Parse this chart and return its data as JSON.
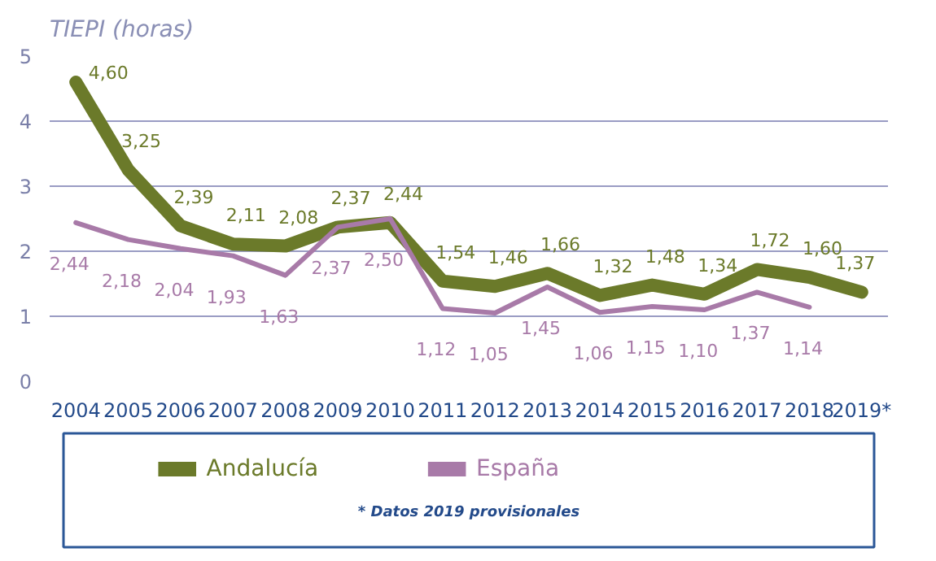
{
  "chart_data": {
    "type": "line",
    "ylabel": "TIEPI (horas)",
    "categories": [
      "2004",
      "2005",
      "2006",
      "2007",
      "2008",
      "2009",
      "2010",
      "2011",
      "2012",
      "2013",
      "2014",
      "2015",
      "2016",
      "2017",
      "2018",
      "2019*"
    ],
    "series": [
      {
        "name": "Andalucía",
        "color": "#6b7a2a",
        "values": [
          4.6,
          3.25,
          2.39,
          2.11,
          2.08,
          2.37,
          2.44,
          1.54,
          1.46,
          1.66,
          1.32,
          1.48,
          1.34,
          1.72,
          1.6,
          1.37
        ],
        "value_labels": [
          "4,60",
          "3,25",
          "2,39",
          "2,11",
          "2,08",
          "2,37",
          "2,44",
          "1,54",
          "1,46",
          "1,66",
          "1,32",
          "1,48",
          "1,34",
          "1,72",
          "1,60",
          "1,37"
        ]
      },
      {
        "name": "España",
        "color": "#a87aa8",
        "values": [
          2.44,
          2.18,
          2.04,
          1.93,
          1.63,
          2.37,
          2.5,
          1.12,
          1.05,
          1.45,
          1.06,
          1.15,
          1.1,
          1.37,
          1.14,
          null
        ],
        "value_labels": [
          "2,44",
          "2,18",
          "2,04",
          "1,93",
          "1,63",
          "2,37",
          "2,50",
          "1,12",
          "1,05",
          "1,45",
          "1,06",
          "1,15",
          "1,10",
          "1,37",
          "1,14",
          null
        ]
      }
    ],
    "ylim": [
      0,
      5
    ],
    "yticks": [
      0,
      1,
      2,
      3,
      4,
      5
    ],
    "grid": "y",
    "legend": "bottom",
    "annotations": [
      "* Datos 2019 provisionales"
    ]
  }
}
